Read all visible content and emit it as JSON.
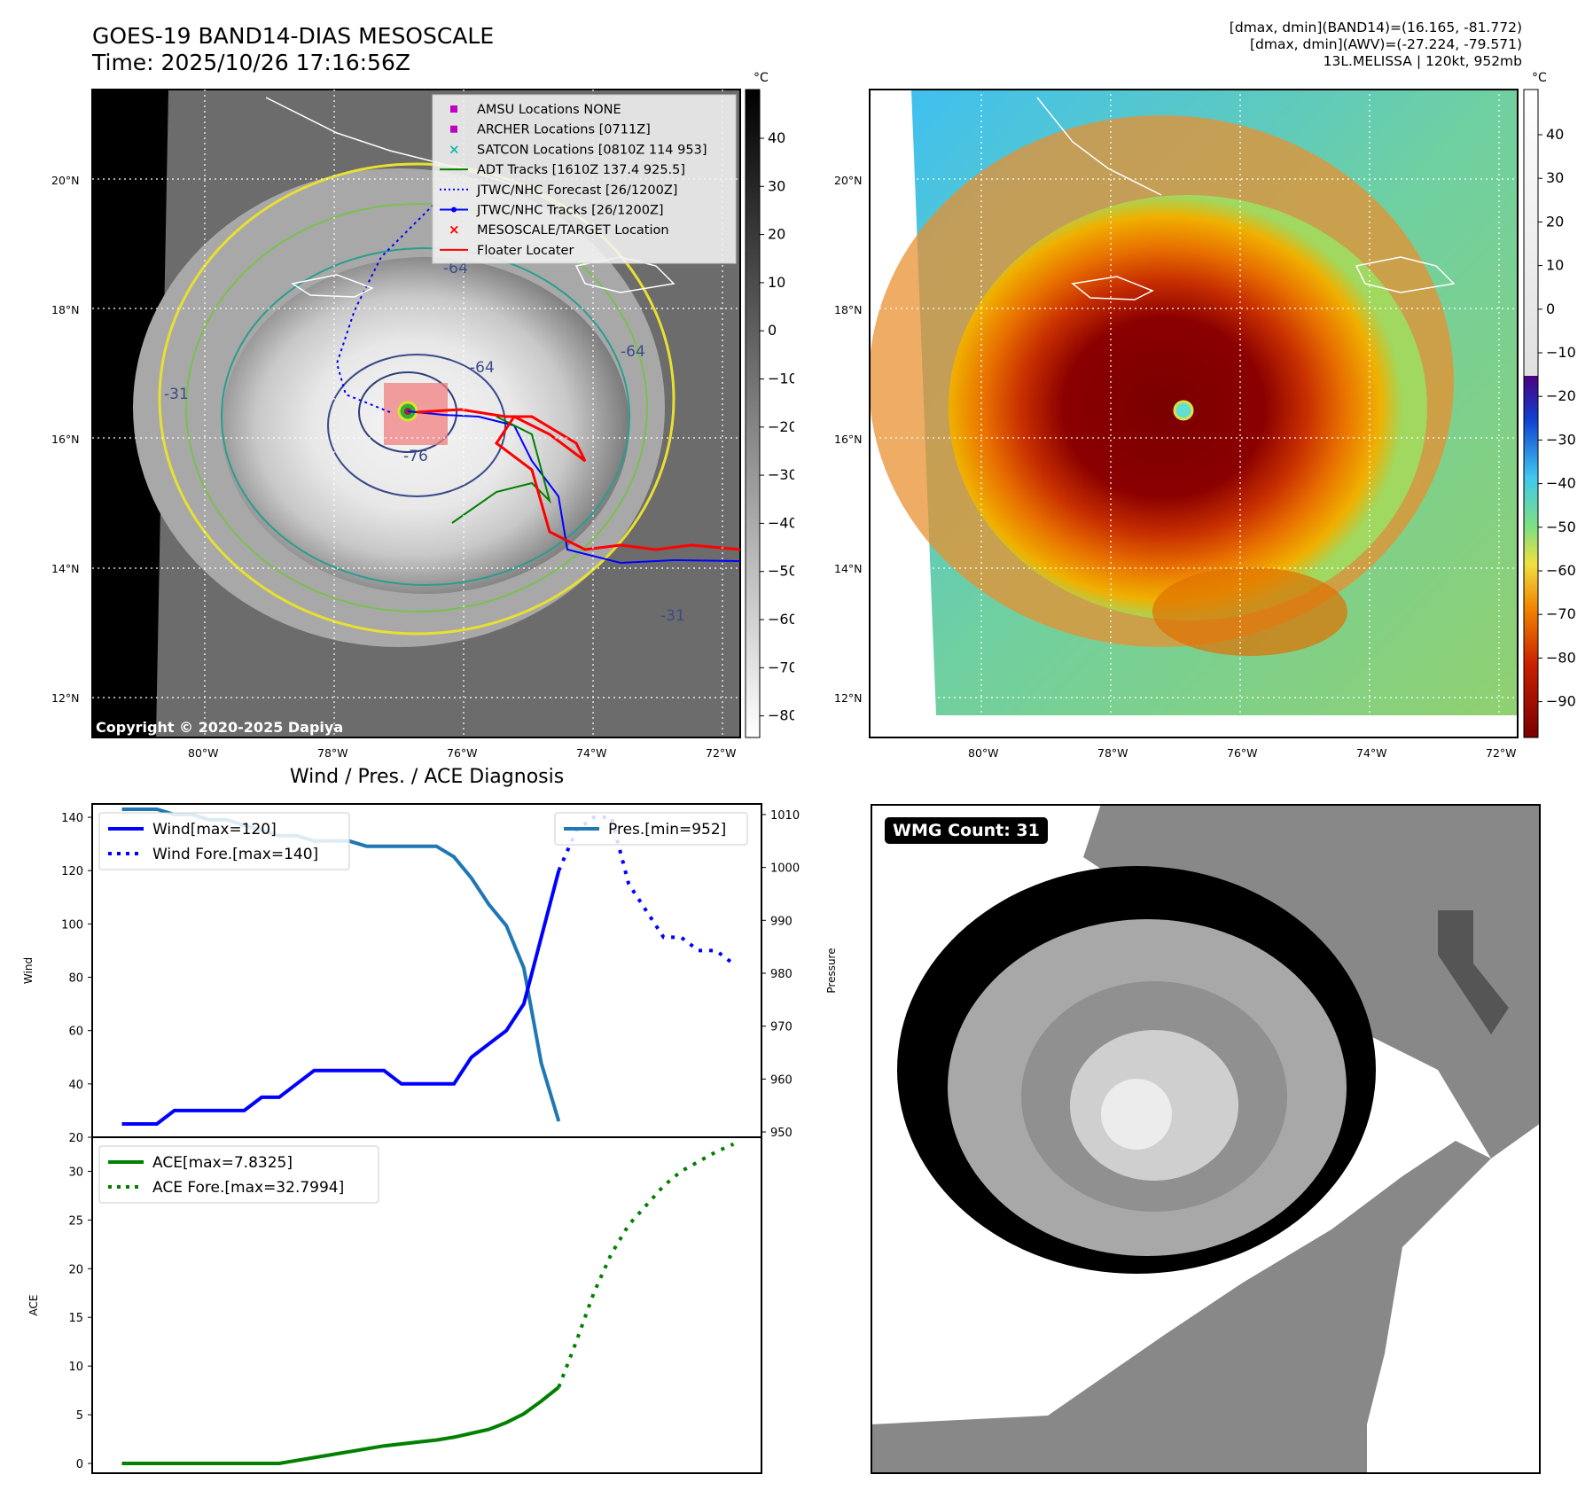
{
  "header": {
    "title_line1": "GOES-19 BAND14-DIAS MESOSCALE",
    "title_line2": "Time: 2025/10/26 17:16:56Z",
    "info_line1": "[dmax, dmin](BAND14)=(16.165, -81.772)",
    "info_line2": "[dmax, dmin](AWV)=(-27.224, -79.571)",
    "info_line3": "13L.MELISSA | 120kt, 952mb"
  },
  "map_axes": {
    "lat_labels": [
      "20°N",
      "18°N",
      "16°N",
      "14°N",
      "12°N"
    ],
    "lon_labels": [
      "80°W",
      "78°W",
      "76°W",
      "74°W",
      "72°W"
    ]
  },
  "panel_ir": {
    "copyright": "Copyright © 2020-2025 Dapiya",
    "contour_labels": [
      "-64",
      "-64",
      "-76",
      "-64",
      "-31",
      "-31"
    ],
    "colorbar": {
      "unit": "°C",
      "ticks": [
        "40",
        "30",
        "20",
        "10",
        "0",
        "−10",
        "−20",
        "−30",
        "−40",
        "−50",
        "−60",
        "−70",
        "−80"
      ]
    },
    "legend": [
      {
        "label": "AMSU Locations NONE",
        "color": "#c000c0",
        "marker": "square"
      },
      {
        "label": "ARCHER Locations [0711Z]",
        "color": "#c000c0",
        "marker": "square"
      },
      {
        "label": "SATCON Locations [0810Z 114 953]",
        "color": "#10b8b0",
        "marker": "x"
      },
      {
        "label": "ADT Tracks [1610Z 137.4 925.5]",
        "color": "#008000",
        "marker": "line"
      },
      {
        "label": "JTWC/NHC Forecast [26/1200Z]",
        "color": "#0000ff",
        "marker": "dotted"
      },
      {
        "label": "JTWC/NHC Tracks [26/1200Z]",
        "color": "#0000ff",
        "marker": "line-dot"
      },
      {
        "label": "MESOSCALE/TARGET Location",
        "color": "#ff0000",
        "marker": "x"
      },
      {
        "label": "Floater Locater",
        "color": "#ff0000",
        "marker": "line"
      }
    ]
  },
  "panel_awv": {
    "colorbar": {
      "unit": "°C",
      "ticks": [
        "40",
        "30",
        "20",
        "10",
        "0",
        "−10",
        "−20",
        "−30",
        "−40",
        "−50",
        "−60",
        "−70",
        "−80",
        "−90"
      ]
    }
  },
  "panel_wmg": {
    "badge": "WMG Count: 31"
  },
  "chart_data": [
    {
      "type": "line",
      "title": "Wind / Pres. / ACE Diagnosis",
      "ylabel": "Wind",
      "ylim": [
        20,
        145
      ],
      "yticks": [
        20,
        40,
        60,
        80,
        100,
        120,
        140
      ],
      "series": [
        {
          "name": "Wind[max=120]",
          "style": "solid",
          "color": "#0000ff",
          "x": [
            0,
            1,
            2,
            3,
            4,
            5,
            6,
            7,
            8,
            9,
            10,
            11,
            12,
            13,
            14,
            15,
            16,
            17,
            18,
            19,
            20,
            21,
            22,
            23,
            24,
            25
          ],
          "values": [
            25,
            25,
            25,
            30,
            30,
            30,
            30,
            30,
            35,
            35,
            40,
            45,
            45,
            45,
            45,
            45,
            40,
            40,
            40,
            40,
            50,
            55,
            60,
            70,
            95,
            120
          ]
        },
        {
          "name": "Wind Fore.[max=140]",
          "style": "dotted",
          "color": "#0000ff",
          "x": [
            25,
            26,
            27,
            28,
            29,
            30,
            31,
            32,
            33,
            34,
            35
          ],
          "values": [
            120,
            135,
            140,
            140,
            115,
            105,
            95,
            95,
            90,
            90,
            85
          ]
        }
      ],
      "secondary_axis": {
        "ylabel": "Pressure",
        "ylim": [
          949,
          1012
        ],
        "yticks": [
          950,
          960,
          970,
          980,
          990,
          1000,
          1010
        ],
        "series": [
          {
            "name": "Pres.[min=952]",
            "style": "solid",
            "color": "#1f77b4",
            "x": [
              0,
              1,
              2,
              3,
              4,
              5,
              6,
              7,
              8,
              9,
              10,
              11,
              12,
              13,
              14,
              15,
              16,
              17,
              18,
              19,
              20,
              21,
              22,
              23,
              24,
              25
            ],
            "values": [
              1011,
              1011,
              1011,
              1010,
              1010,
              1009,
              1009,
              1008,
              1007,
              1006,
              1006,
              1005,
              1005,
              1005,
              1004,
              1004,
              1004,
              1004,
              1004,
              1002,
              998,
              993,
              989,
              981,
              963,
              952
            ]
          }
        ]
      }
    },
    {
      "type": "line",
      "ylabel": "ACE",
      "ylim": [
        -1,
        33.5
      ],
      "yticks": [
        0,
        5,
        10,
        15,
        20,
        25,
        30
      ],
      "series": [
        {
          "name": "ACE[max=7.8325]",
          "style": "solid",
          "color": "#008000",
          "x": [
            0,
            2,
            4,
            6,
            8,
            9,
            10,
            11,
            12,
            13,
            14,
            15,
            16,
            17,
            18,
            19,
            20,
            21,
            22,
            23,
            24,
            25
          ],
          "values": [
            0,
            0,
            0,
            0,
            0,
            0,
            0.3,
            0.6,
            0.9,
            1.2,
            1.5,
            1.8,
            2.0,
            2.2,
            2.4,
            2.7,
            3.1,
            3.5,
            4.2,
            5.1,
            6.4,
            7.8325
          ]
        },
        {
          "name": "ACE Fore.[max=32.7994]",
          "style": "dotted",
          "color": "#008000",
          "x": [
            25,
            26,
            27,
            28,
            29,
            30,
            31,
            32,
            33,
            34,
            35
          ],
          "values": [
            7.8325,
            12.5,
            17.5,
            21.5,
            24.5,
            26.5,
            28.5,
            30.0,
            31.0,
            32.0,
            32.7994
          ]
        }
      ]
    }
  ]
}
